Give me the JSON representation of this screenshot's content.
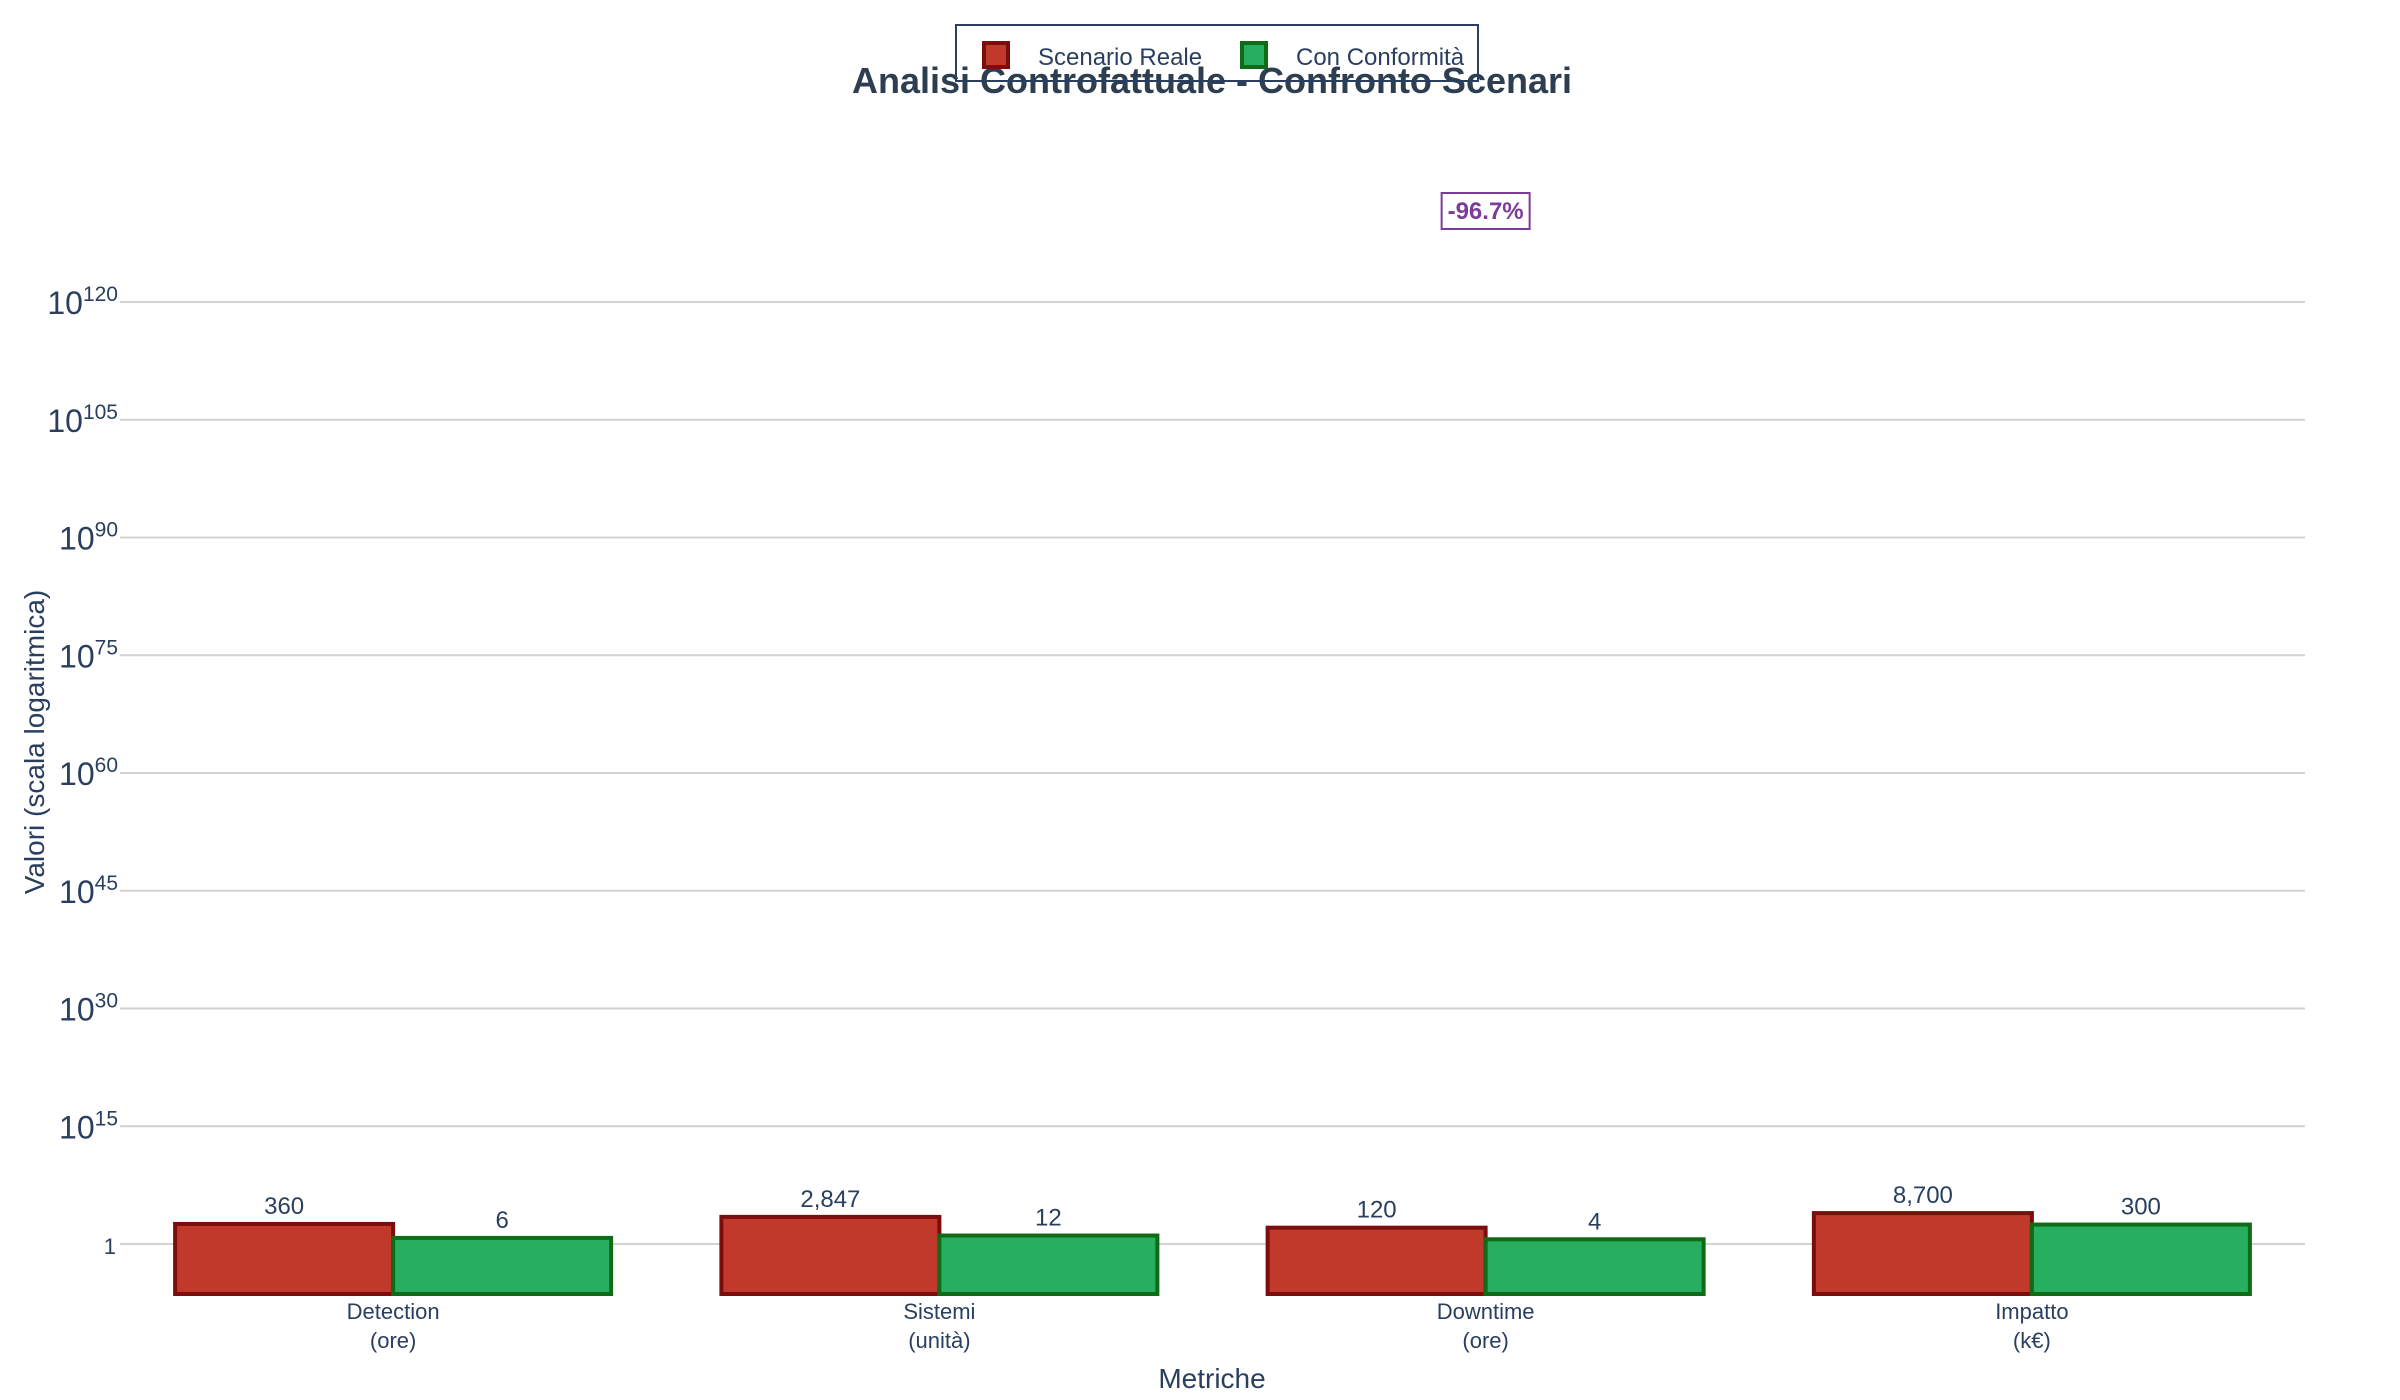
{
  "chart_data": {
    "type": "bar",
    "title": "Analisi Controfattuale - Confronto Scenari",
    "xlabel": "Metriche",
    "ylabel": "Valori (scala logaritmica)",
    "yscale": "log",
    "categories": [
      [
        "Detection",
        "(ore)"
      ],
      [
        "Sistemi",
        "(unità)"
      ],
      [
        "Downtime",
        "(ore)"
      ],
      [
        "Impatto",
        "(k€)"
      ]
    ],
    "series": [
      {
        "name": "Scenario Reale",
        "values": [
          360,
          2847,
          120,
          8700
        ],
        "labels": [
          "360",
          "2,847",
          "120",
          "8,700"
        ],
        "fill": "#c0392b",
        "stroke": "#7b0d0d"
      },
      {
        "name": "Con Conformità",
        "values": [
          6,
          12,
          4,
          300
        ],
        "labels": [
          "6",
          "12",
          "4",
          "300"
        ],
        "fill": "#27ae60",
        "stroke": "#0f6b16"
      }
    ],
    "ytick_labels": [
      {
        "exp": 0,
        "label": "1"
      },
      {
        "exp": 15,
        "label": "10",
        "sup": "15"
      },
      {
        "exp": 30,
        "label": "10",
        "sup": "30"
      },
      {
        "exp": 45,
        "label": "10",
        "sup": "45"
      },
      {
        "exp": 60,
        "label": "10",
        "sup": "60"
      },
      {
        "exp": 75,
        "label": "10",
        "sup": "75"
      },
      {
        "exp": 90,
        "label": "10",
        "sup": "90"
      },
      {
        "exp": 105,
        "label": "10",
        "sup": "105"
      },
      {
        "exp": 120,
        "label": "10",
        "sup": "120"
      }
    ],
    "annotation": {
      "text": "-96.7%",
      "category_index": 2,
      "color": "#7d3c98"
    },
    "legend_placement": "top-center",
    "grid": true,
    "colors": {
      "text": "#2a3f5f",
      "grid": "#d3d3d3",
      "title": "#2c3e50"
    }
  }
}
